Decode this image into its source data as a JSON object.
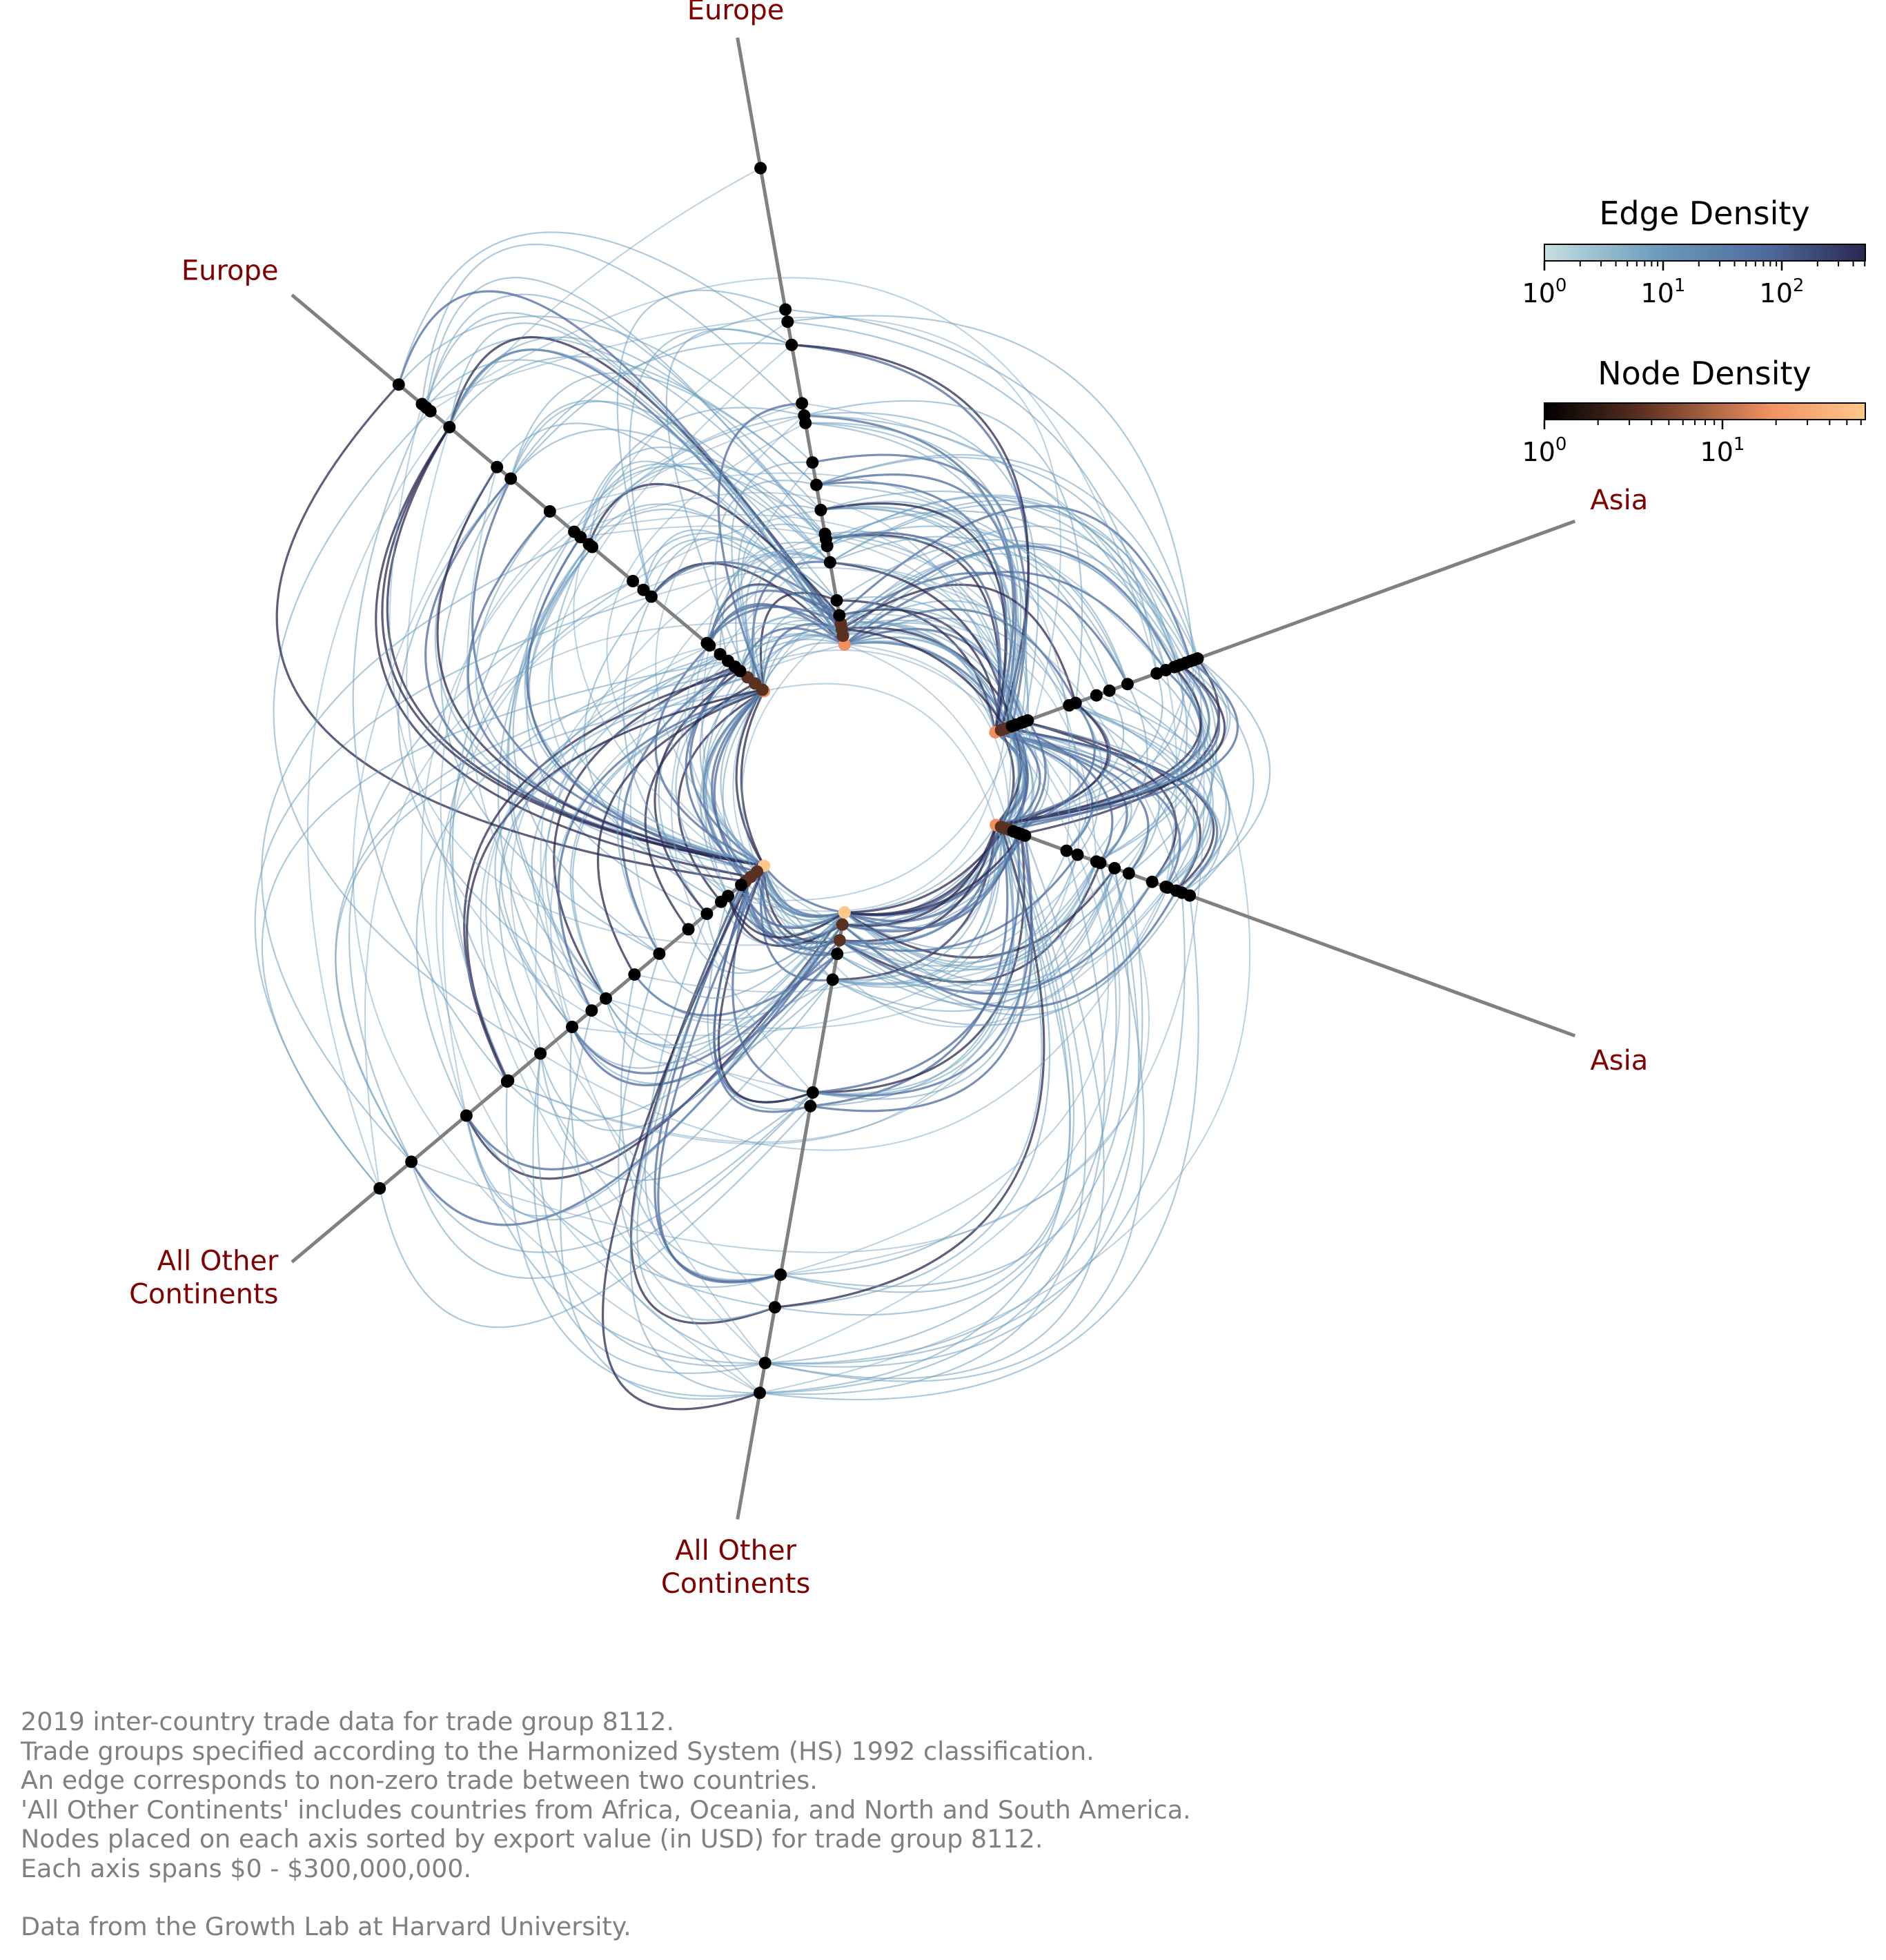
{
  "axes": [
    {
      "id": "europe-1",
      "label": [
        "Europe"
      ],
      "angle": 100
    },
    {
      "id": "asia-1",
      "label": [
        "Asia"
      ],
      "angle": 20
    },
    {
      "id": "asia-2",
      "label": [
        "Asia"
      ],
      "angle": -20
    },
    {
      "id": "other-1",
      "label": [
        "All Other",
        "Continents"
      ],
      "angle": -100
    },
    {
      "id": "other-2",
      "label": [
        "All Other",
        "Continents"
      ],
      "angle": -140
    },
    {
      "id": "europe-2",
      "label": [
        "Europe"
      ],
      "angle": 140
    }
  ],
  "colorbars": {
    "edge": {
      "title": "Edge Density",
      "ticks": [
        {
          "base": "10",
          "exp": "0"
        },
        {
          "base": "10",
          "exp": "1"
        },
        {
          "base": "10",
          "exp": "2"
        }
      ],
      "colors": [
        "#c5e0e0",
        "#6c9cbd",
        "#4e6a9c",
        "#2a2850"
      ]
    },
    "node": {
      "title": "Node Density",
      "ticks": [
        {
          "base": "10",
          "exp": "0"
        },
        {
          "base": "10",
          "exp": "1"
        }
      ],
      "colors": [
        "#000000",
        "#5a3020",
        "#f09060",
        "#ffc88a"
      ]
    }
  },
  "caption": {
    "lines": [
      "2019 inter-country trade data for trade group 8112.",
      "Trade groups specified according to the Harmonized System (HS) 1992 classification.",
      "An edge corresponds to non-zero trade between two countries.",
      "'All Other Continents' includes countries from Africa, Oceania, and North and South America.",
      "Nodes placed on each axis sorted by export value (in USD) for trade group 8112.",
      "Each axis spans $0 - $300,000,000."
    ],
    "source": "Data from the Growth Lab at Harvard University."
  },
  "chart_data": {
    "type": "hive",
    "axis_span": [
      0,
      300000000
    ],
    "edge_color_scale": "log",
    "node_color_scale": "log",
    "grid": false
  }
}
